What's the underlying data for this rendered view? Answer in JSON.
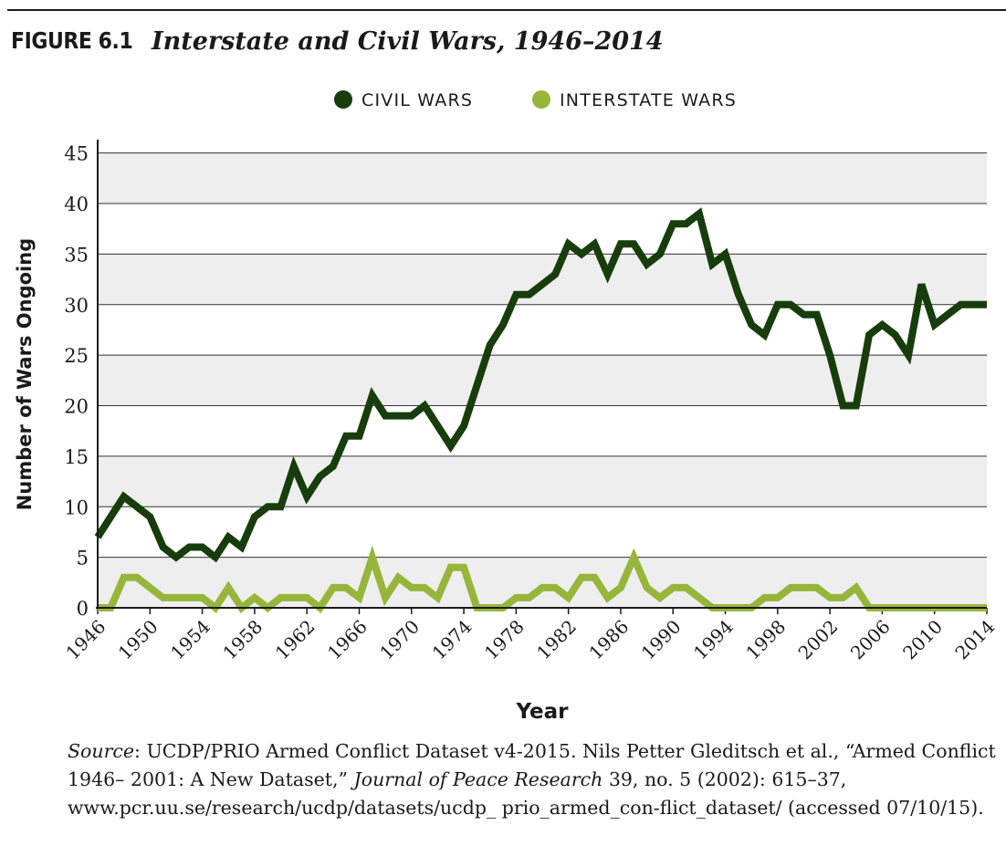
{
  "figure": {
    "label": "FIGURE 6.1",
    "title": "Interstate and Civil Wars, 1946–2014"
  },
  "legend": {
    "civil_label": "CIVIL WARS",
    "interstate_label": "INTERSTATE WARS"
  },
  "colors": {
    "civil": "#173d0c",
    "interstate": "#96b63b",
    "band": "#eeeeee",
    "grid": "#333333"
  },
  "source": {
    "lead": "Source",
    "text1": ": UCDP/PRIO Armed Conflict Dataset v4-2015. Nils Petter Gleditsch et al., “Armed Conflict 1946– 2001: A New Dataset,” ",
    "journal": "Journal of Peace Research",
    "text2": " 39, no. 5 (2002): 615–37, www.pcr.uu.se/research/ucdp/datasets/ucdp_ prio_armed_con-flict_dataset/ (accessed 07/10/15)."
  },
  "chart_data": {
    "type": "line",
    "title": "Interstate and Civil Wars, 1946–2014",
    "xlabel": "Year",
    "ylabel": "Number of Wars Ongoing",
    "xlim": [
      1946,
      2014
    ],
    "ylim": [
      0,
      46
    ],
    "yticks": [
      0,
      5,
      10,
      15,
      20,
      25,
      30,
      35,
      40,
      45
    ],
    "xticks": [
      1946,
      1950,
      1954,
      1958,
      1962,
      1966,
      1970,
      1974,
      1978,
      1982,
      1986,
      1990,
      1994,
      1998,
      2002,
      2006,
      2010,
      2014
    ],
    "grid": "horizontal bands",
    "legend_position": "top-center",
    "x": [
      1946,
      1947,
      1948,
      1949,
      1950,
      1951,
      1952,
      1953,
      1954,
      1955,
      1956,
      1957,
      1958,
      1959,
      1960,
      1961,
      1962,
      1963,
      1964,
      1965,
      1966,
      1967,
      1968,
      1969,
      1970,
      1971,
      1972,
      1973,
      1974,
      1975,
      1976,
      1977,
      1978,
      1979,
      1980,
      1981,
      1982,
      1983,
      1984,
      1985,
      1986,
      1987,
      1988,
      1989,
      1990,
      1991,
      1992,
      1993,
      1994,
      1995,
      1996,
      1997,
      1998,
      1999,
      2000,
      2001,
      2002,
      2003,
      2004,
      2005,
      2006,
      2007,
      2008,
      2009,
      2010,
      2011,
      2012,
      2013,
      2014
    ],
    "series": [
      {
        "name": "CIVIL WARS",
        "values": [
          7,
          9,
          11,
          10,
          9,
          6,
          5,
          6,
          6,
          5,
          7,
          6,
          9,
          10,
          10,
          14,
          11,
          13,
          14,
          17,
          17,
          21,
          19,
          19,
          19,
          20,
          18,
          16,
          18,
          22,
          26,
          28,
          31,
          31,
          32,
          33,
          36,
          35,
          36,
          33,
          36,
          36,
          34,
          35,
          38,
          38,
          39,
          34,
          35,
          31,
          28,
          27,
          30,
          30,
          29,
          29,
          25,
          20,
          20,
          27,
          28,
          27,
          25,
          32,
          28,
          29,
          30,
          30,
          30
        ]
      },
      {
        "name": "INTERSTATE WARS",
        "values": [
          0,
          0,
          3,
          3,
          2,
          1,
          1,
          1,
          1,
          0,
          2,
          0,
          1,
          0,
          1,
          1,
          1,
          0,
          2,
          2,
          1,
          5,
          1,
          3,
          2,
          2,
          1,
          4,
          4,
          0,
          0,
          0,
          1,
          1,
          2,
          2,
          1,
          3,
          3,
          1,
          2,
          5,
          2,
          1,
          2,
          2,
          1,
          0,
          0,
          0,
          0,
          1,
          1,
          2,
          2,
          2,
          1,
          1,
          2,
          0,
          0,
          0,
          0,
          0,
          0,
          0,
          0,
          0,
          0
        ]
      }
    ]
  }
}
